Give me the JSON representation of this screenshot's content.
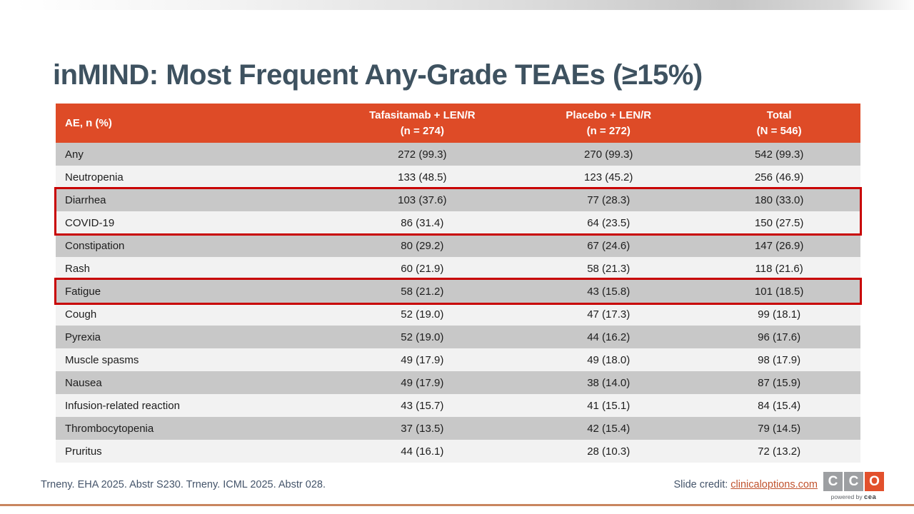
{
  "slide": {
    "title": "inMIND: Most Frequent Any-Grade TEAEs (≥15%)"
  },
  "table": {
    "header": {
      "col1": "AE, n (%)",
      "col2_line1": "Tafasitamab + LEN/R",
      "col2_line2": "(n = 274)",
      "col3_line1": "Placebo + LEN/R",
      "col3_line2": "(n = 272)",
      "col4_line1": "Total",
      "col4_line2": "(N = 546)"
    },
    "rows": [
      {
        "ae": "Any",
        "tafasitamab": "272 (99.3)",
        "placebo": "270 (99.3)",
        "total": "542 (99.3)",
        "highlighted": false
      },
      {
        "ae": "Neutropenia",
        "tafasitamab": "133 (48.5)",
        "placebo": "123 (45.2)",
        "total": "256 (46.9)",
        "highlighted": false
      },
      {
        "ae": "Diarrhea",
        "tafasitamab": "103 (37.6)",
        "placebo": "77 (28.3)",
        "total": "180 (33.0)",
        "highlighted": true
      },
      {
        "ae": "COVID-19",
        "tafasitamab": "86 (31.4)",
        "placebo": "64 (23.5)",
        "total": "150 (27.5)",
        "highlighted": true
      },
      {
        "ae": "Constipation",
        "tafasitamab": "80 (29.2)",
        "placebo": "67 (24.6)",
        "total": "147 (26.9)",
        "highlighted": false
      },
      {
        "ae": "Rash",
        "tafasitamab": "60 (21.9)",
        "placebo": "58 (21.3)",
        "total": "118 (21.6)",
        "highlighted": false
      },
      {
        "ae": "Fatigue",
        "tafasitamab": "58 (21.2)",
        "placebo": "43 (15.8)",
        "total": "101 (18.5)",
        "highlighted": true
      },
      {
        "ae": "Cough",
        "tafasitamab": "52 (19.0)",
        "placebo": "47 (17.3)",
        "total": "99 (18.1)",
        "highlighted": false
      },
      {
        "ae": "Pyrexia",
        "tafasitamab": "52 (19.0)",
        "placebo": "44 (16.2)",
        "total": "96 (17.6)",
        "highlighted": false
      },
      {
        "ae": "Muscle spasms",
        "tafasitamab": "49 (17.9)",
        "placebo": "49 (18.0)",
        "total": "98 (17.9)",
        "highlighted": false
      },
      {
        "ae": "Nausea",
        "tafasitamab": "49 (17.9)",
        "placebo": "38 (14.0)",
        "total": "87 (15.9)",
        "highlighted": false
      },
      {
        "ae": "Infusion-related reaction",
        "tafasitamab": "43 (15.7)",
        "placebo": "41 (15.1)",
        "total": "84 (15.4)",
        "highlighted": false
      },
      {
        "ae": "Thrombocytopenia",
        "tafasitamab": "37 (13.5)",
        "placebo": "42 (15.4)",
        "total": "79 (14.5)",
        "highlighted": false
      },
      {
        "ae": "Pruritus",
        "tafasitamab": "44 (16.1)",
        "placebo": "28 (10.3)",
        "total": "72 (13.2)",
        "highlighted": false
      }
    ]
  },
  "footer": {
    "reference": "Trneny. EHA 2025. Abstr S230. Trneny. ICML 2025. Abstr 028.",
    "credit_label": "Slide credit: ",
    "credit_link": "clinicaloptions.com",
    "logo": {
      "letter1": "C",
      "letter2": "C",
      "letter3": "O",
      "tagline_prefix": "powered by ",
      "tagline_brand": "cea"
    }
  },
  "colors": {
    "header_bg": "#DE4B27",
    "row_gray": "#C8C8C8",
    "row_light": "#F2F2F2",
    "highlight_border": "#C80000",
    "title_text": "#3E5260",
    "footer_text": "#44546A",
    "link": "#C0522D",
    "logo_gray": "#9D9FA2",
    "logo_orange": "#E2502C",
    "accent_line": "#C9855F"
  }
}
